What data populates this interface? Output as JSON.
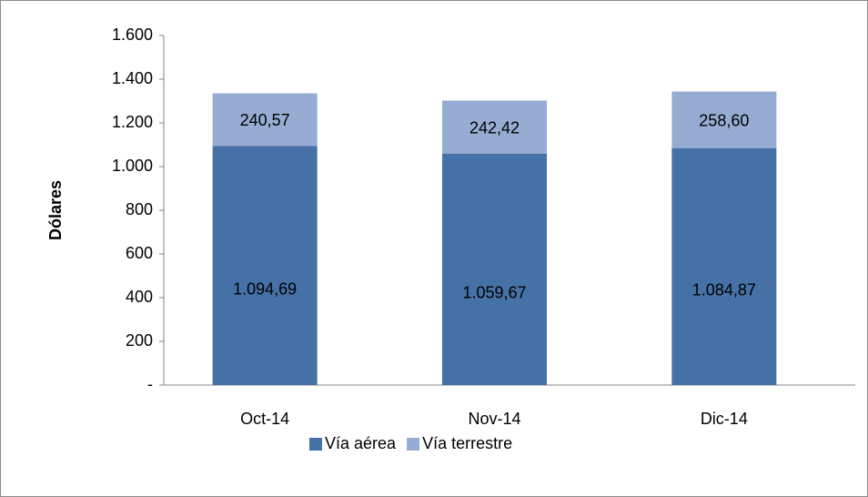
{
  "chart_data": {
    "type": "stacked_bar",
    "y_label": "Dólares",
    "categories": [
      "Oct-14",
      "Nov-14",
      "Dic-14"
    ],
    "series": [
      {
        "name": "Vía aérea",
        "color": "#4571a6",
        "values": [
          1094.69,
          1059.67,
          1084.87
        ],
        "value_labels": [
          "1.094,69",
          "1.059,67",
          "1.084,87"
        ]
      },
      {
        "name": "Vía terrestre",
        "color": "#96acd3",
        "values": [
          240.57,
          242.42,
          258.6
        ],
        "value_labels": [
          "240,57",
          "242,42",
          "258,60"
        ]
      }
    ],
    "ylim": [
      0,
      1600
    ],
    "yticks": [
      {
        "value": 0,
        "label": "-"
      },
      200,
      400,
      600,
      800,
      {
        "value": 1000,
        "label": "1.000"
      },
      {
        "value": 1200,
        "label": "1.200"
      },
      {
        "value": 1400,
        "label": "1.400"
      },
      {
        "value": 1600,
        "label": "1.600"
      }
    ],
    "legend": "bottom"
  }
}
